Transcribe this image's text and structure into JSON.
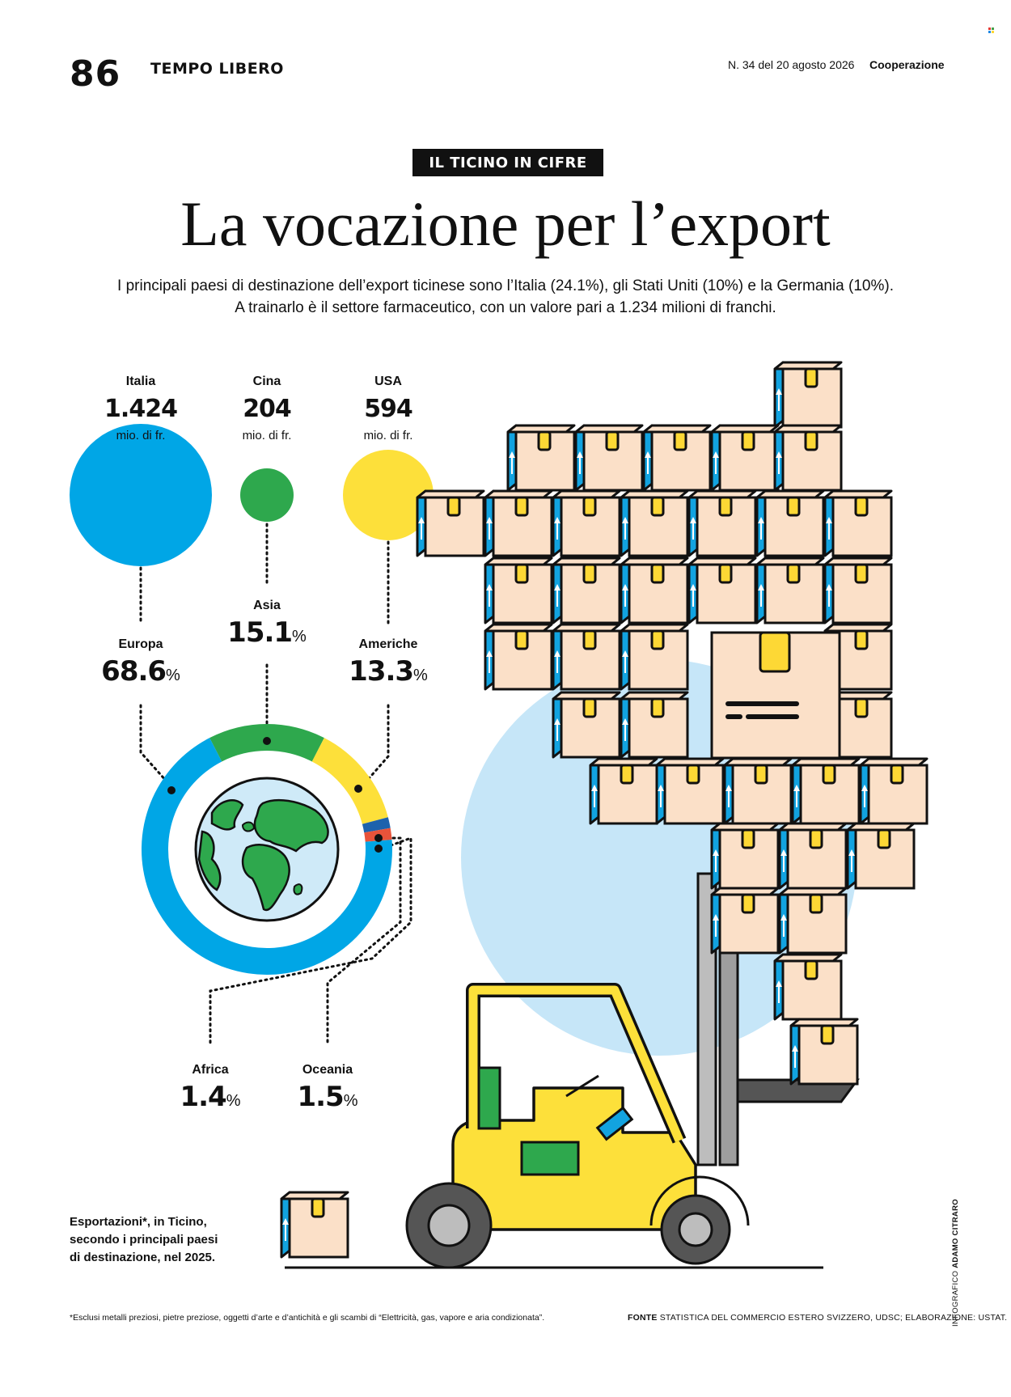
{
  "header": {
    "page_number": "86",
    "section": "TEMPO LIBERO",
    "issue": "N. 34 del 20 agosto 2026",
    "magazine": "Cooperazione"
  },
  "article": {
    "kicker": "IL TICINO IN CIFRE",
    "title": "La vocazione per l’export",
    "lead_line1": "I principali paesi di destinazione dell’export ticinese sono l’Italia (24.1%), gli Stati Uniti (10%) e la Germania (10%).",
    "lead_line2": "A trainarlo è il settore farmaceutico, con un valore pari a 1.234 milioni di franchi."
  },
  "chart_data": [
    {
      "type": "bubble",
      "unit": "mio. di fr.",
      "countries": [
        {
          "name": "Italia",
          "value": 1424,
          "label": "1.424",
          "color": "#00a6e6"
        },
        {
          "name": "Cina",
          "value": 204,
          "label": "204",
          "color": "#2ea84d"
        },
        {
          "name": "USA",
          "value": 594,
          "label": "594",
          "color": "#fde03a"
        }
      ]
    },
    {
      "type": "pie",
      "style": "donut",
      "slices": [
        {
          "name": "Europa",
          "value": 68.6,
          "label": "68.6",
          "color": "#00a6e6"
        },
        {
          "name": "Asia",
          "value": 15.1,
          "label": "15.1",
          "color": "#2ea84d"
        },
        {
          "name": "Americhe",
          "value": 13.3,
          "label": "13.3",
          "color": "#fde03a"
        },
        {
          "name": "Africa",
          "value": 1.4,
          "label": "1.4",
          "color": "#1d62ad"
        },
        {
          "name": "Oceania",
          "value": 1.5,
          "label": "1.5",
          "color": "#e8533a"
        }
      ],
      "percent_sign": "%"
    }
  ],
  "caption": {
    "line1": "Esportazioni*, in Ticino,",
    "line2": "secondo i principali paesi",
    "line3": "di destinazione, nel 2025."
  },
  "footnote": "*Esclusi metalli preziosi, pietre preziose, oggetti d’arte e d’antichità e gli scambi di “Elettricità, gas, vapore e aria condizionata”.",
  "source": {
    "label": "FONTE",
    "text": "STATISTICA DEL COMMERCIO ESTERO SVIZZERO, UDSC; ELABORAZIONE: USTAT."
  },
  "credit": {
    "label": "INFOGRAFICO",
    "author": "ADAMO CITRARO"
  },
  "colors": {
    "box_face": "#fbe0c8",
    "box_side": "#12a3e0",
    "box_tape": "#fdd835",
    "forklift": "#fde03a",
    "background_circle": "#c6e6f8",
    "outline": "#111111"
  },
  "icons": [
    "globe-icon",
    "forklift-illustration",
    "box-icon"
  ]
}
